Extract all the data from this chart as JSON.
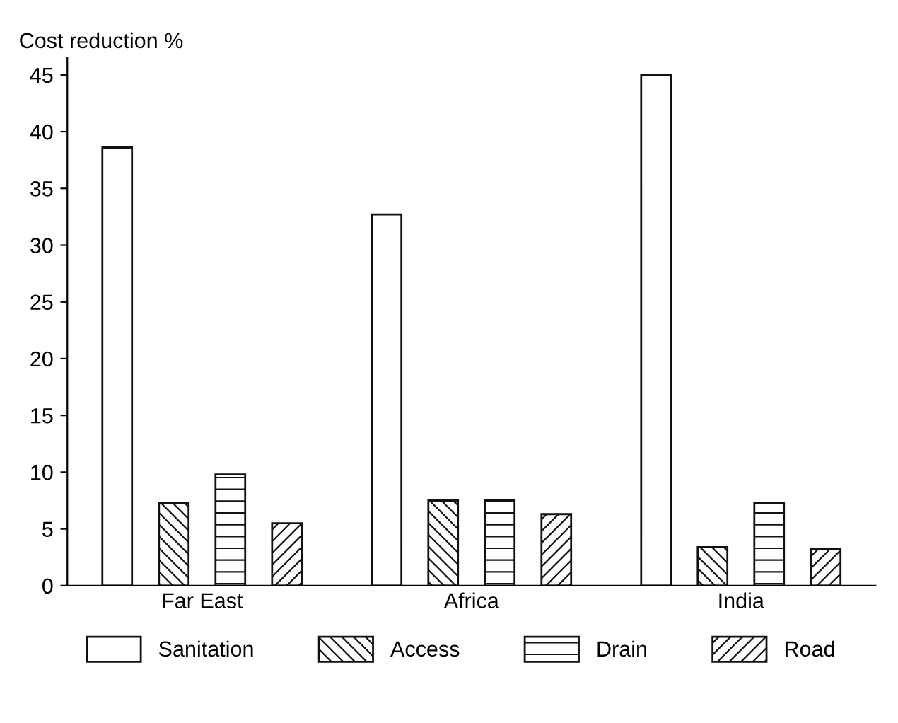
{
  "chart_data": {
    "type": "bar",
    "ylabel": "Cost reduction %",
    "categories": [
      "Far East",
      "Africa",
      "India"
    ],
    "series": [
      {
        "name": "Sanitation",
        "color": "#ffffff",
        "values": [
          38.6,
          32.7,
          45.0
        ]
      },
      {
        "name": "Access",
        "color": "#111111",
        "values": [
          7.3,
          7.5,
          3.4
        ]
      },
      {
        "name": "Drain",
        "color": "#111111",
        "values": [
          9.8,
          7.5,
          7.3
        ]
      },
      {
        "name": "Road",
        "color": "#111111",
        "values": [
          5.5,
          6.3,
          3.2
        ]
      }
    ],
    "ylim": [
      0,
      46.5
    ],
    "yticks": [
      0,
      5,
      10,
      15,
      20,
      25,
      30,
      35,
      40,
      45
    ],
    "grid": false,
    "legend": "bottom"
  }
}
